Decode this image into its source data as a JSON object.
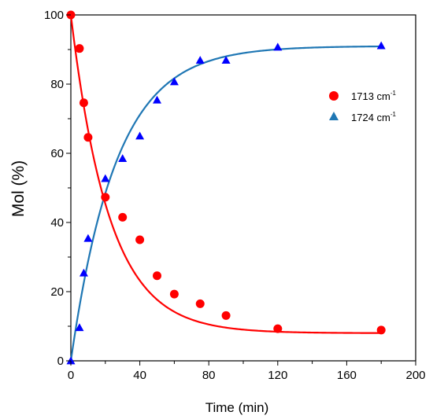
{
  "chart_data": {
    "type": "scatter",
    "title": "",
    "xlabel": "Time (min)",
    "ylabel": "Mol (%)",
    "xlim": [
      0,
      200
    ],
    "ylim": [
      0,
      100
    ],
    "x_ticks": [
      0,
      40,
      80,
      120,
      160,
      200
    ],
    "y_ticks": [
      0,
      20,
      40,
      60,
      80,
      100
    ],
    "grid": false,
    "legend_position": "right",
    "series": [
      {
        "name": "1713 cm",
        "name_superscript": "-1",
        "marker": "circle",
        "color": "#ff0000",
        "line_color": "#ff0000",
        "x": [
          0,
          5,
          7.5,
          10,
          20,
          30,
          40,
          50,
          60,
          75,
          90,
          120,
          180
        ],
        "y": [
          100,
          90.3,
          74.6,
          64.6,
          47.3,
          41.5,
          35.0,
          24.6,
          19.3,
          16.5,
          13.1,
          9.3,
          8.9
        ],
        "fit": {
          "model": "exponential-decay",
          "y0": 100,
          "plateau": 8,
          "k": 0.045
        }
      },
      {
        "name": "1724 cm",
        "name_superscript": "-1",
        "marker": "triangle",
        "color": "#0000ff",
        "line_color": "#1f77b4",
        "x": [
          0,
          5,
          7.5,
          10,
          20,
          30,
          40,
          50,
          60,
          75,
          90,
          120,
          180
        ],
        "y": [
          0,
          9.6,
          25.4,
          35.4,
          52.7,
          58.5,
          65.0,
          75.4,
          80.7,
          86.9,
          86.9,
          90.7,
          91.1
        ],
        "fit": {
          "model": "exponential-rise",
          "y0": 0,
          "plateau": 91,
          "k": 0.038
        }
      }
    ]
  }
}
